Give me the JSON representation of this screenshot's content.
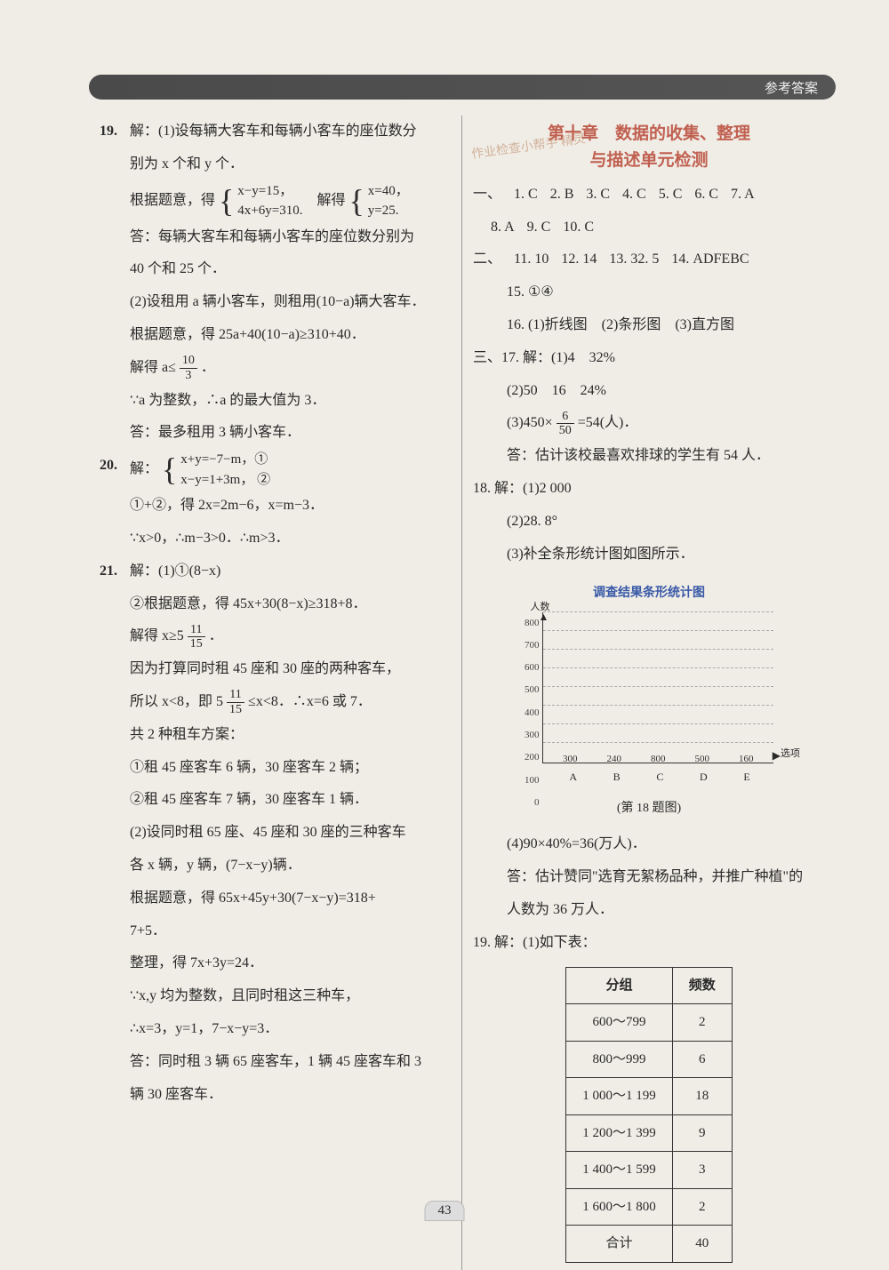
{
  "header": {
    "label": "参考答案"
  },
  "page_number": "43",
  "left": {
    "q19": {
      "num": "19.",
      "intro": "解：(1)设每辆大客车和每辆小客车的座位数分",
      "intro2": "别为 x 个和 y 个．",
      "eq_lead": "根据题意，得",
      "sys1a": "x−y=15，",
      "sys1b": "4x+6y=310.",
      "solve_lead": "解得",
      "sys2a": "x=40，",
      "sys2b": "y=25.",
      "ans1a": "答：每辆大客车和每辆小客车的座位数分别为",
      "ans1b": "40 个和 25 个．",
      "p2a": "(2)设租用 a 辆小客车，则租用(10−a)辆大客车．",
      "p2b": "根据题意，得 25a+40(10−a)≥310+40．",
      "p2c_lead": "解得 a≤",
      "p2c_num": "10",
      "p2c_den": "3",
      "p2c_tail": "．",
      "p2d": "∵a 为整数，∴a 的最大值为 3．",
      "p2e": "答：最多租用 3 辆小客车．"
    },
    "q20": {
      "num": "20.",
      "lead": "解：",
      "sys_a": "x+y=−7−m，①",
      "sys_b": "x−y=1+3m，  ②",
      "l1": "①+②，得 2x=2m−6，x=m−3．",
      "l2": "∵x>0，∴m−3>0．∴m>3．"
    },
    "q21": {
      "num": "21.",
      "l1": "解：(1)①(8−x)",
      "l2": "②根据题意，得 45x+30(8−x)≥318+8．",
      "l3_lead": "解得 x≥5",
      "l3_num": "11",
      "l3_den": "15",
      "l3_tail": "．",
      "l4": "因为打算同时租 45 座和 30 座的两种客车，",
      "l5a": "所以 x<8，即 5",
      "l5_num": "11",
      "l5_den": "15",
      "l5b": "≤x<8．∴x=6 或 7．",
      "l6": "共 2 种租车方案：",
      "l7": "①租 45 座客车 6 辆，30 座客车 2 辆；",
      "l8": "②租 45 座客车 7 辆，30 座客车 1 辆．",
      "l9": "(2)设同时租 65 座、45 座和 30 座的三种客车",
      "l10": "各 x 辆，y 辆，(7−x−y)辆．",
      "l11": "根据题意，得 65x+45y+30(7−x−y)=318+",
      "l12": "7+5．",
      "l13": "整理，得 7x+3y=24．",
      "l14": "∵x,y 均为整数，且同时租这三种车，",
      "l15": "∴x=3，y=1，7−x−y=3．",
      "l16": "答：同时租 3 辆 65 座客车，1 辆 45 座客车和 3",
      "l17": "辆 30 座客车．"
    }
  },
  "right": {
    "chapter": {
      "line1": "第十章　数据的收集、整理",
      "line2": "与描述单元检测"
    },
    "stamp": "作业检查小帮手 精灵",
    "sec1": {
      "lead": "一、",
      "items": [
        "1. C",
        "2. B",
        "3. C",
        "4. C",
        "5. C",
        "6. C",
        "7. A",
        "8. A",
        "9. C",
        "10. C"
      ]
    },
    "sec2": {
      "lead": "二、",
      "i11": "11. 10",
      "i12": "12. 14",
      "i13": "13. 32. 5",
      "i14": "14. ADFEBC",
      "i15": "15. ①④",
      "i16": "16. (1)折线图　(2)条形图　(3)直方图"
    },
    "sec3": {
      "lead": "三、",
      "q17": {
        "l1": "17. 解：(1)4　32%",
        "l2": "(2)50　16　24%",
        "l3_lead": "(3)450×",
        "l3_num": "6",
        "l3_den": "50",
        "l3_tail": "=54(人)．",
        "l4": "答：估计该校最喜欢排球的学生有 54 人．"
      },
      "q18": {
        "l1": "18. 解：(1)2 000",
        "l2": "(2)28. 8°",
        "l3": "(3)补全条形统计图如图所示．",
        "chart": {
          "title": "调查结果条形统计图",
          "ylabel": "人数",
          "xlabel": "选项",
          "ymax": 800,
          "ystep": 100,
          "yticks": [
            "800",
            "700",
            "600",
            "500",
            "400",
            "300",
            "200",
            "100",
            "0"
          ],
          "categories": [
            "A",
            "B",
            "C",
            "D",
            "E"
          ],
          "values": [
            300,
            240,
            800,
            500,
            160
          ],
          "bar_color": "#cc3a3a",
          "dashed_color": "#aaaaaa",
          "caption": "(第 18 题图)"
        },
        "l4": "(4)90×40%=36(万人)．",
        "l5": "答：估计赞同\"选育无絮杨品种，并推广种植\"的",
        "l6": "人数为 36 万人．"
      },
      "q19": {
        "l1": "19. 解：(1)如下表：",
        "table": {
          "headers": [
            "分组",
            "频数"
          ],
          "rows": [
            [
              "600～799",
              "2"
            ],
            [
              "800～999",
              "6"
            ],
            [
              "1 000～1 199",
              "18"
            ],
            [
              "1 200～1 399",
              "9"
            ],
            [
              "1 400～1 599",
              "3"
            ],
            [
              "1 600～1 800",
              "2"
            ],
            [
              "合计",
              "40"
            ]
          ]
        }
      }
    }
  }
}
